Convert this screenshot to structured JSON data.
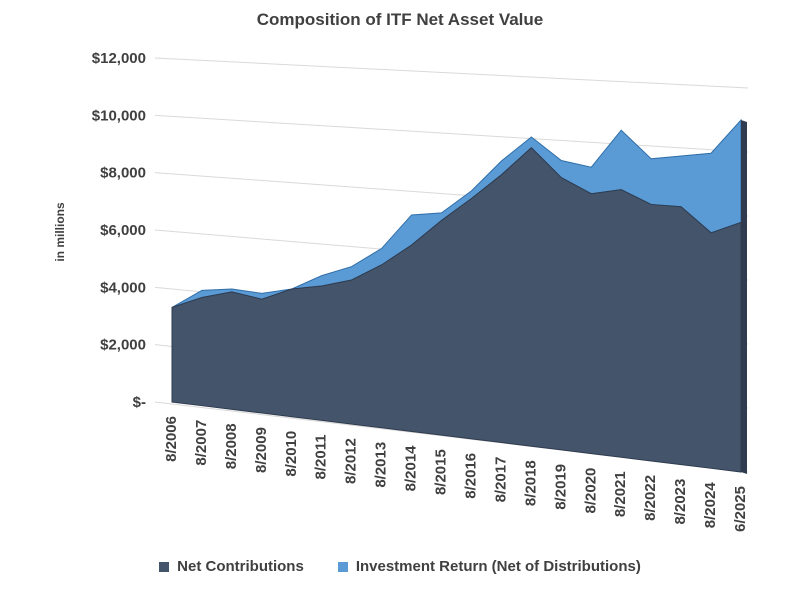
{
  "chart_data": {
    "type": "area",
    "stacked": true,
    "title": "Composition of ITF Net Asset Value",
    "ylabel": "in millions",
    "xlabel": "",
    "ylim": [
      0,
      12000
    ],
    "yticks": [
      0,
      2000,
      4000,
      6000,
      8000,
      10000,
      12000
    ],
    "ytick_labels": [
      "$-",
      "$2,000",
      "$4,000",
      "$6,000",
      "$8,000",
      "$10,000",
      "$12,000"
    ],
    "x_labels": [
      "8/2006",
      "8/2007",
      "8/2008",
      "8/2009",
      "8/2010",
      "8/2011",
      "8/2012",
      "8/2013",
      "8/2014",
      "8/2015",
      "8/2016",
      "8/2017",
      "8/2018",
      "8/2019",
      "8/2020",
      "8/2021",
      "8/2022",
      "8/2023",
      "8/2024",
      "6/2025"
    ],
    "series": [
      {
        "name": "Net Contributions",
        "color": "#44546a",
        "values": [
          3300,
          3750,
          4050,
          3900,
          4350,
          4550,
          4850,
          5450,
          6200,
          7100,
          7900,
          8750,
          9700,
          8800,
          8350,
          8550,
          8150,
          8150,
          7400,
          7800
        ]
      },
      {
        "name": "Investment Return (Net of Distributions)",
        "color": "#5b9bd5",
        "values": [
          0,
          250,
          100,
          200,
          0,
          350,
          450,
          550,
          1000,
          250,
          250,
          450,
          350,
          550,
          850,
          1900,
          1450,
          1600,
          2500,
          3200
        ]
      }
    ],
    "grid": true,
    "legend_position": "bottom"
  }
}
